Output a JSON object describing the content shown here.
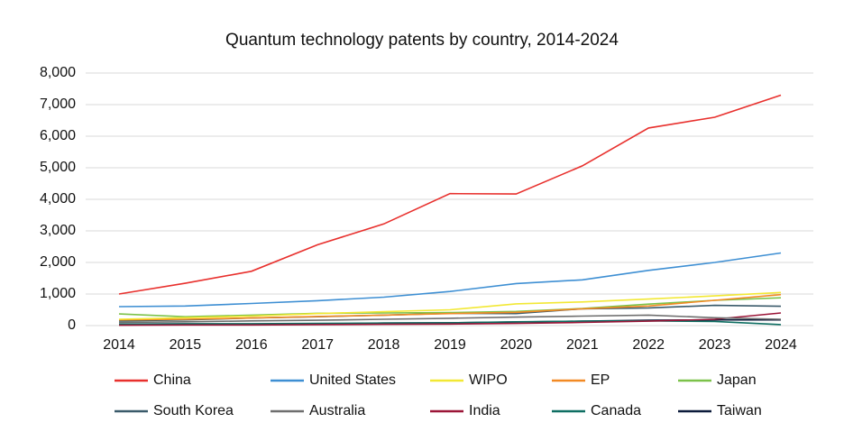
{
  "chart_data": {
    "type": "line",
    "title": "Quantum technology patents by country, 2014-2024",
    "categories": [
      "2014",
      "2015",
      "2016",
      "2017",
      "2018",
      "2019",
      "2020",
      "2021",
      "2022",
      "2023",
      "2024"
    ],
    "ylim": [
      0,
      8000
    ],
    "yticks": [
      0,
      {
        "value": 1000,
        "label": "1,000"
      },
      {
        "value": 2000,
        "label": "2,000"
      },
      {
        "value": 3000,
        "label": "3,000"
      },
      {
        "value": 4000,
        "label": "4,000"
      },
      {
        "value": 5000,
        "label": "5,000"
      },
      {
        "value": 6000,
        "label": "6,000"
      },
      {
        "value": 7000,
        "label": "7,000"
      },
      {
        "value": 8000,
        "label": "8,000"
      }
    ],
    "grid": true,
    "legend": "bottom",
    "series": [
      {
        "name": "China",
        "color": "#e8302d",
        "values": [
          1000,
          1340,
          1720,
          2560,
          3220,
          4180,
          4170,
          5060,
          6260,
          6600,
          7300
        ]
      },
      {
        "name": "United States",
        "color": "#3e8fd3",
        "values": [
          600,
          620,
          700,
          790,
          900,
          1080,
          1330,
          1450,
          1750,
          2000,
          2300
        ]
      },
      {
        "name": "WIPO",
        "color": "#f2e834",
        "values": [
          200,
          250,
          300,
          380,
          440,
          500,
          690,
          750,
          840,
          940,
          1050
        ]
      },
      {
        "name": "EP",
        "color": "#f28a24",
        "values": [
          180,
          200,
          240,
          290,
          330,
          380,
          420,
          530,
          620,
          800,
          980
        ]
      },
      {
        "name": "Japan",
        "color": "#7cc24a",
        "values": [
          370,
          280,
          330,
          390,
          400,
          410,
          450,
          540,
          680,
          800,
          880
        ]
      },
      {
        "name": "South Korea",
        "color": "#3a5a6a",
        "values": [
          150,
          180,
          240,
          280,
          330,
          390,
          380,
          530,
          560,
          640,
          610
        ]
      },
      {
        "name": "Australia",
        "color": "#6e6e6e",
        "values": [
          100,
          120,
          150,
          170,
          200,
          230,
          270,
          300,
          330,
          250,
          200
        ]
      },
      {
        "name": "India",
        "color": "#9b1537",
        "values": [
          10,
          20,
          20,
          30,
          40,
          50,
          70,
          100,
          140,
          200,
          400
        ]
      },
      {
        "name": "Canada",
        "color": "#0e6e62",
        "values": [
          50,
          60,
          60,
          70,
          80,
          90,
          120,
          140,
          150,
          130,
          30
        ]
      },
      {
        "name": "Taiwan",
        "color": "#0b1a3a",
        "values": [
          20,
          30,
          40,
          50,
          80,
          90,
          110,
          140,
          170,
          180,
          180
        ]
      }
    ]
  }
}
